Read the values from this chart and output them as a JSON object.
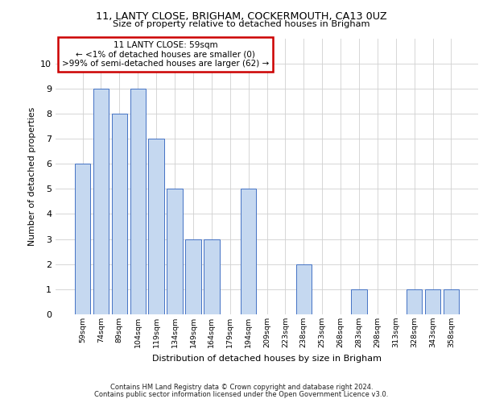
{
  "title_line1": "11, LANTY CLOSE, BRIGHAM, COCKERMOUTH, CA13 0UZ",
  "title_line2": "Size of property relative to detached houses in Brigham",
  "xlabel": "Distribution of detached houses by size in Brigham",
  "ylabel": "Number of detached properties",
  "categories": [
    "59sqm",
    "74sqm",
    "89sqm",
    "104sqm",
    "119sqm",
    "134sqm",
    "149sqm",
    "164sqm",
    "179sqm",
    "194sqm",
    "209sqm",
    "223sqm",
    "238sqm",
    "253sqm",
    "268sqm",
    "283sqm",
    "298sqm",
    "313sqm",
    "328sqm",
    "343sqm",
    "358sqm"
  ],
  "values": [
    6,
    9,
    8,
    9,
    7,
    5,
    3,
    3,
    0,
    5,
    0,
    0,
    2,
    0,
    0,
    1,
    0,
    0,
    1,
    1,
    1
  ],
  "bar_color": "#c5d8f0",
  "bar_edge_color": "#4472c4",
  "grid_color": "#d0d0d0",
  "background_color": "#ffffff",
  "annotation_text": "11 LANTY CLOSE: 59sqm\n← <1% of detached houses are smaller (0)\n>99% of semi-detached houses are larger (62) →",
  "annotation_box_color": "#ffffff",
  "annotation_box_edge_color": "#cc0000",
  "ylim": [
    0,
    11
  ],
  "yticks": [
    0,
    1,
    2,
    3,
    4,
    5,
    6,
    7,
    8,
    9,
    10
  ],
  "footer_line1": "Contains HM Land Registry data © Crown copyright and database right 2024.",
  "footer_line2": "Contains public sector information licensed under the Open Government Licence v3.0."
}
